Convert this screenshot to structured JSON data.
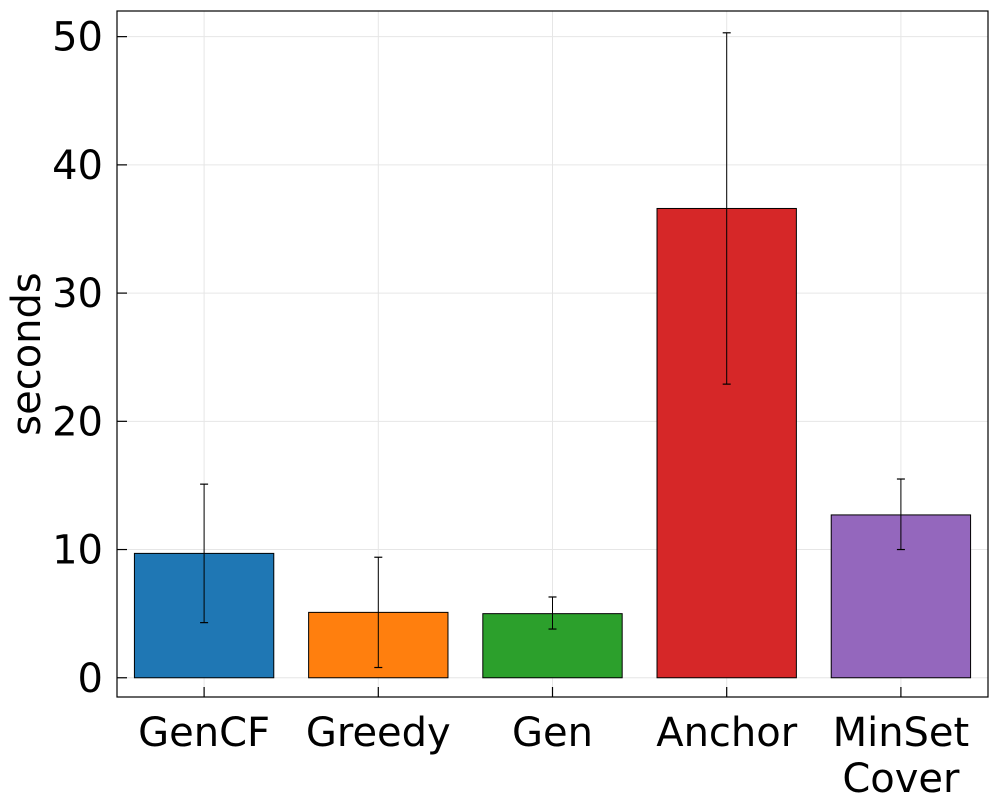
{
  "chart_data": {
    "type": "bar",
    "title": "",
    "xlabel": "",
    "ylabel": "seconds",
    "ylim": [
      -1.5,
      52
    ],
    "yticks": [
      0,
      10,
      20,
      30,
      40,
      50
    ],
    "grid": true,
    "legend": "none",
    "categories": [
      [
        "GenCF"
      ],
      [
        "Greedy"
      ],
      [
        "Gen"
      ],
      [
        "Anchor"
      ],
      [
        "MinSet",
        "Cover"
      ]
    ],
    "values": [
      9.7,
      5.1,
      5.0,
      36.6,
      12.7
    ],
    "error_low": [
      4.3,
      0.8,
      3.8,
      22.9,
      10.0
    ],
    "error_high": [
      15.1,
      9.4,
      6.3,
      50.3,
      15.5
    ],
    "colors": [
      "#1f77b4",
      "#ff7f0e",
      "#2ca02c",
      "#d62728",
      "#9467bd"
    ]
  }
}
